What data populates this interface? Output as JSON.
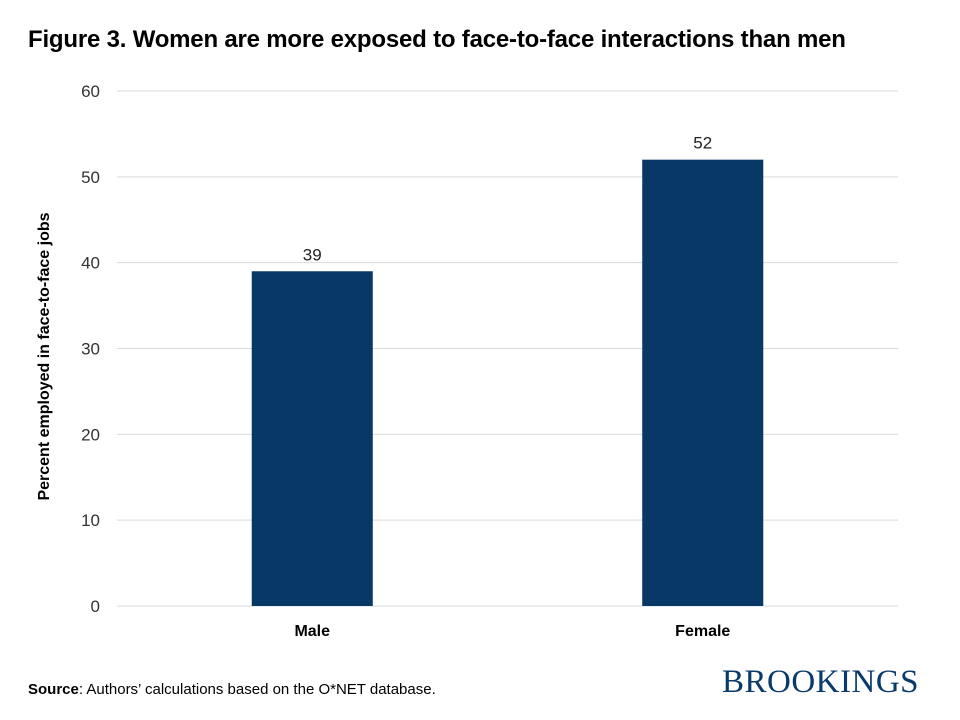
{
  "colors": {
    "bar": "#083866",
    "grid": "#d9d9d9",
    "brand": "#0a3a6b"
  },
  "chart_data": {
    "type": "bar",
    "title": "Figure 3. Women are more exposed to face-to-face interactions than men",
    "xlabel": "",
    "ylabel": "Percent employed in face-to-face jobs",
    "categories": [
      "Male",
      "Female"
    ],
    "values": [
      39,
      52
    ],
    "data_labels": [
      "39",
      "52"
    ],
    "ylim": [
      0,
      60
    ],
    "yticks": [
      0,
      10,
      20,
      30,
      40,
      50,
      60
    ],
    "grid": true,
    "legend": "none"
  },
  "footer": {
    "source_label": "Source",
    "source_text": ": Authors’ calculations based on the O*NET database.",
    "brand": "BROOKINGS"
  }
}
